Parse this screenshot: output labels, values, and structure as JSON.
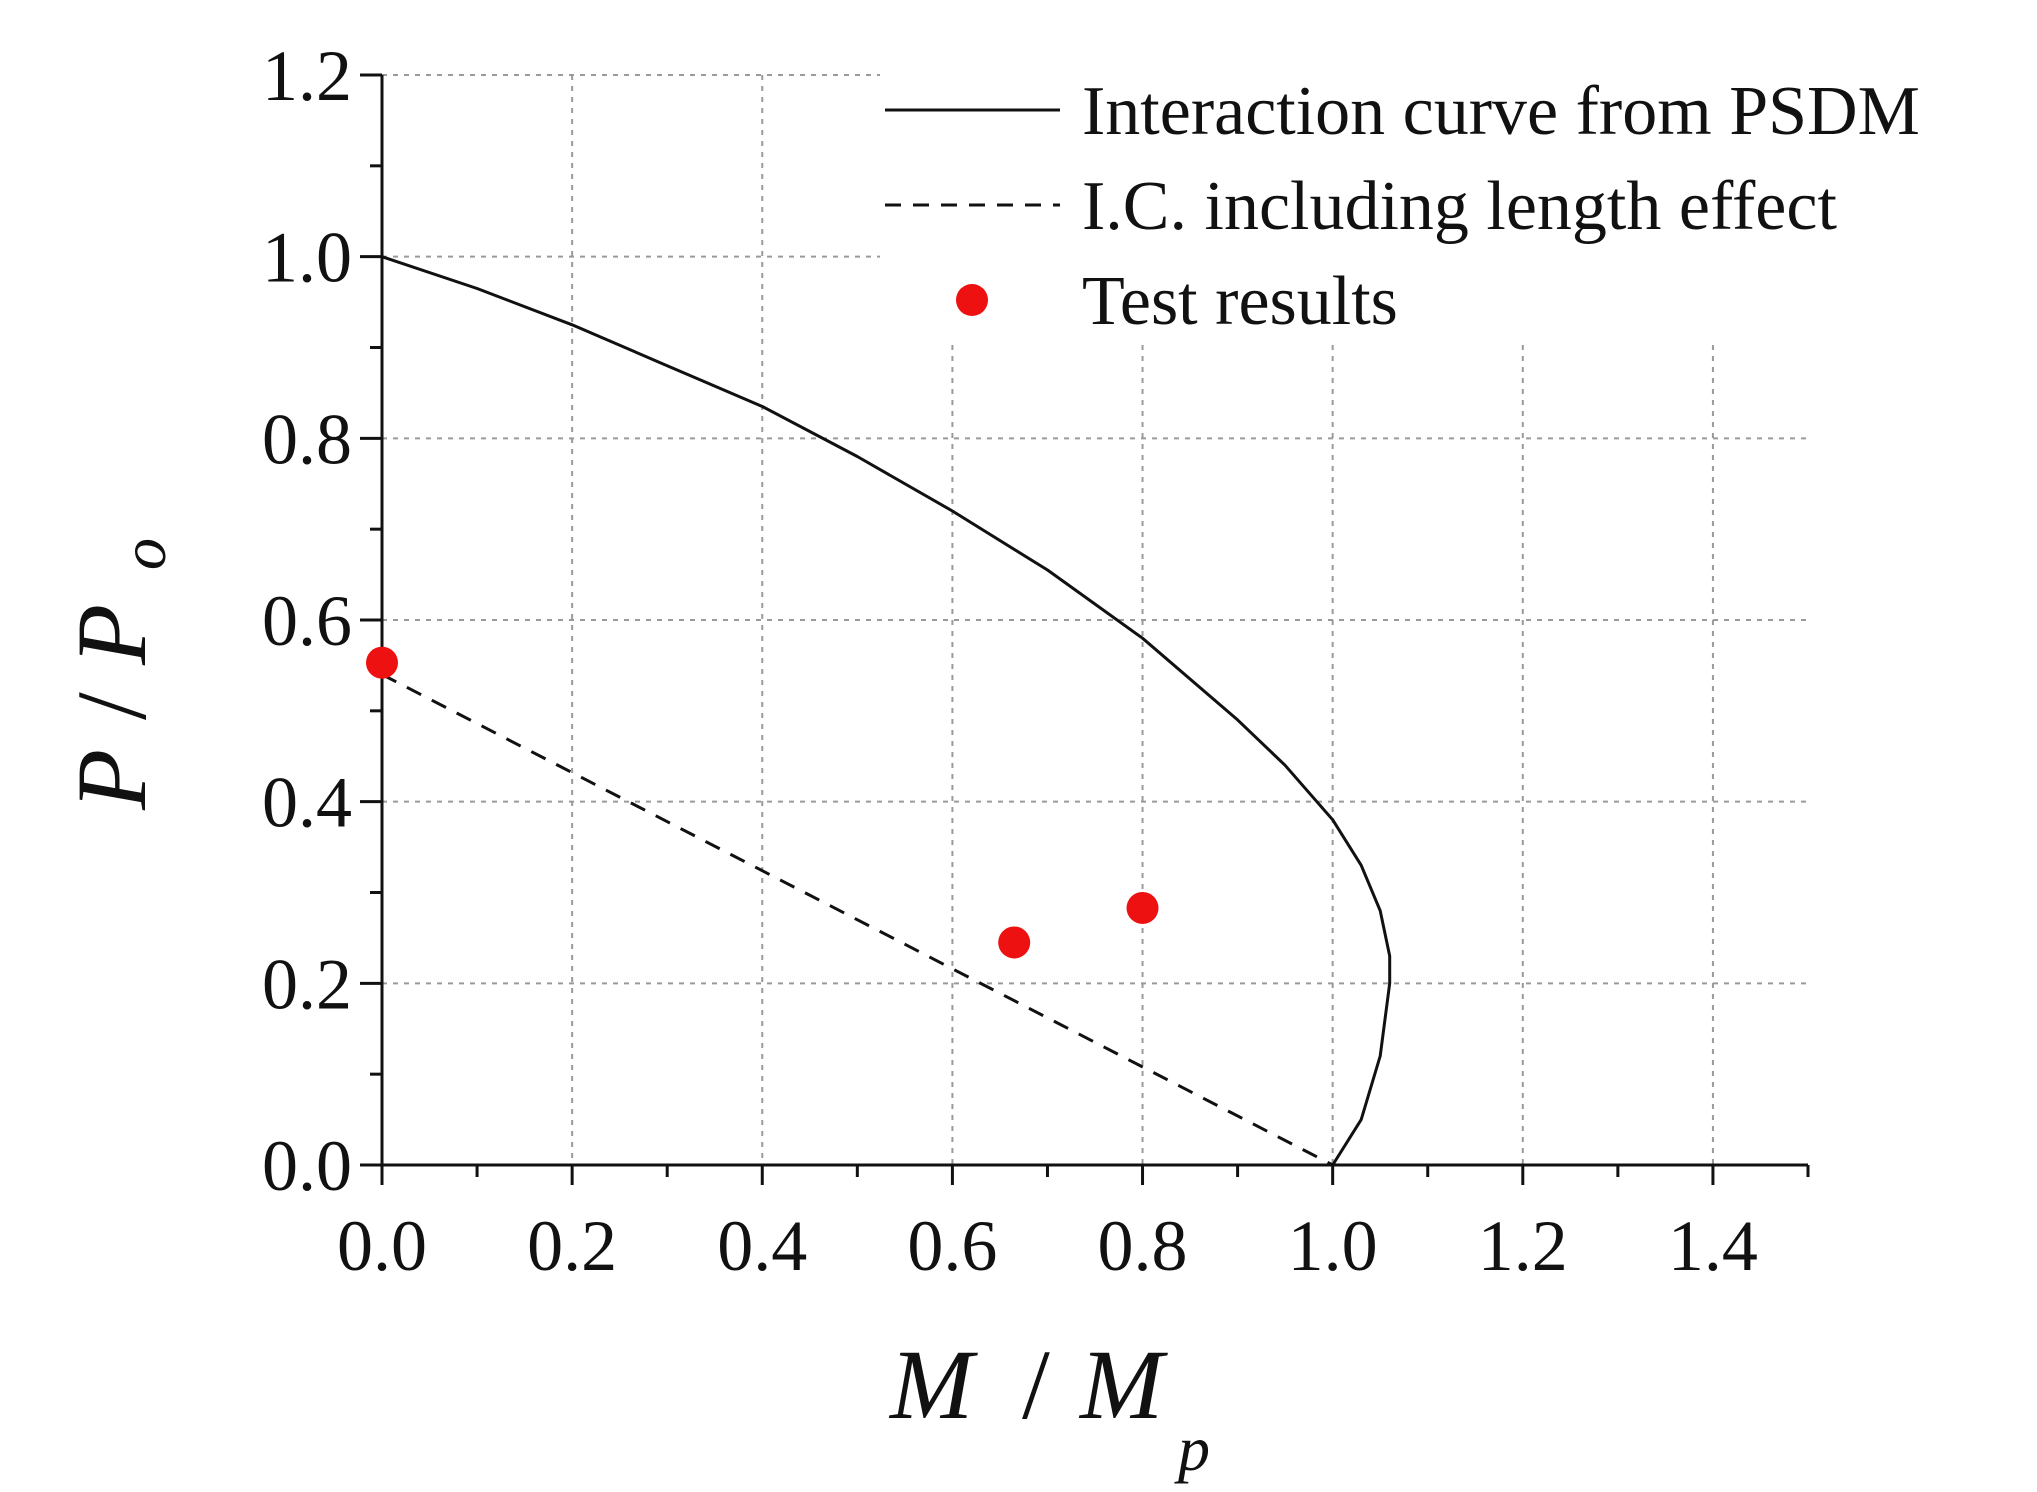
{
  "chart_data": {
    "type": "line",
    "title": "",
    "xlabel": {
      "main": "M",
      "sep": "/",
      "denom": "M",
      "sub": "p"
    },
    "ylabel": {
      "main": "P",
      "sep": "/",
      "denom": "P",
      "sub": "o"
    },
    "xlim": [
      0,
      1.5
    ],
    "ylim": [
      0,
      1.2
    ],
    "xticks": [
      0.0,
      0.2,
      0.4,
      0.6,
      0.8,
      1.0,
      1.2,
      1.4
    ],
    "xtick_labels": [
      "0.0",
      "0.2",
      "0.4",
      "0.6",
      "0.8",
      "1.0",
      "1.2",
      "1.4"
    ],
    "yticks": [
      0.0,
      0.2,
      0.4,
      0.6,
      0.8,
      1.0,
      1.2
    ],
    "ytick_labels": [
      "0.0",
      "0.2",
      "0.4",
      "0.6",
      "0.8",
      "1.0",
      "1.2"
    ],
    "grid": true,
    "legend_position": "top-right",
    "series": [
      {
        "name": "Interaction curve from PSDM",
        "style": "solid",
        "color": "#111111",
        "x": [
          0.0,
          0.1,
          0.2,
          0.3,
          0.4,
          0.5,
          0.6,
          0.7,
          0.8,
          0.9,
          0.95,
          1.0,
          1.03,
          1.05,
          1.06,
          1.06,
          1.05,
          1.03,
          1.0
        ],
        "y": [
          1.0,
          0.965,
          0.925,
          0.88,
          0.835,
          0.78,
          0.72,
          0.655,
          0.58,
          0.49,
          0.44,
          0.38,
          0.33,
          0.28,
          0.23,
          0.2,
          0.12,
          0.05,
          0.0
        ]
      },
      {
        "name": "I.C. including length effect",
        "style": "dashed",
        "color": "#111111",
        "x": [
          0.0,
          1.0
        ],
        "y": [
          0.54,
          0.0
        ]
      },
      {
        "name": "Test results",
        "style": "marker",
        "color": "#ee1111",
        "x": [
          0.0,
          0.665,
          0.8
        ],
        "y": [
          0.553,
          0.245,
          0.283
        ]
      }
    ]
  }
}
